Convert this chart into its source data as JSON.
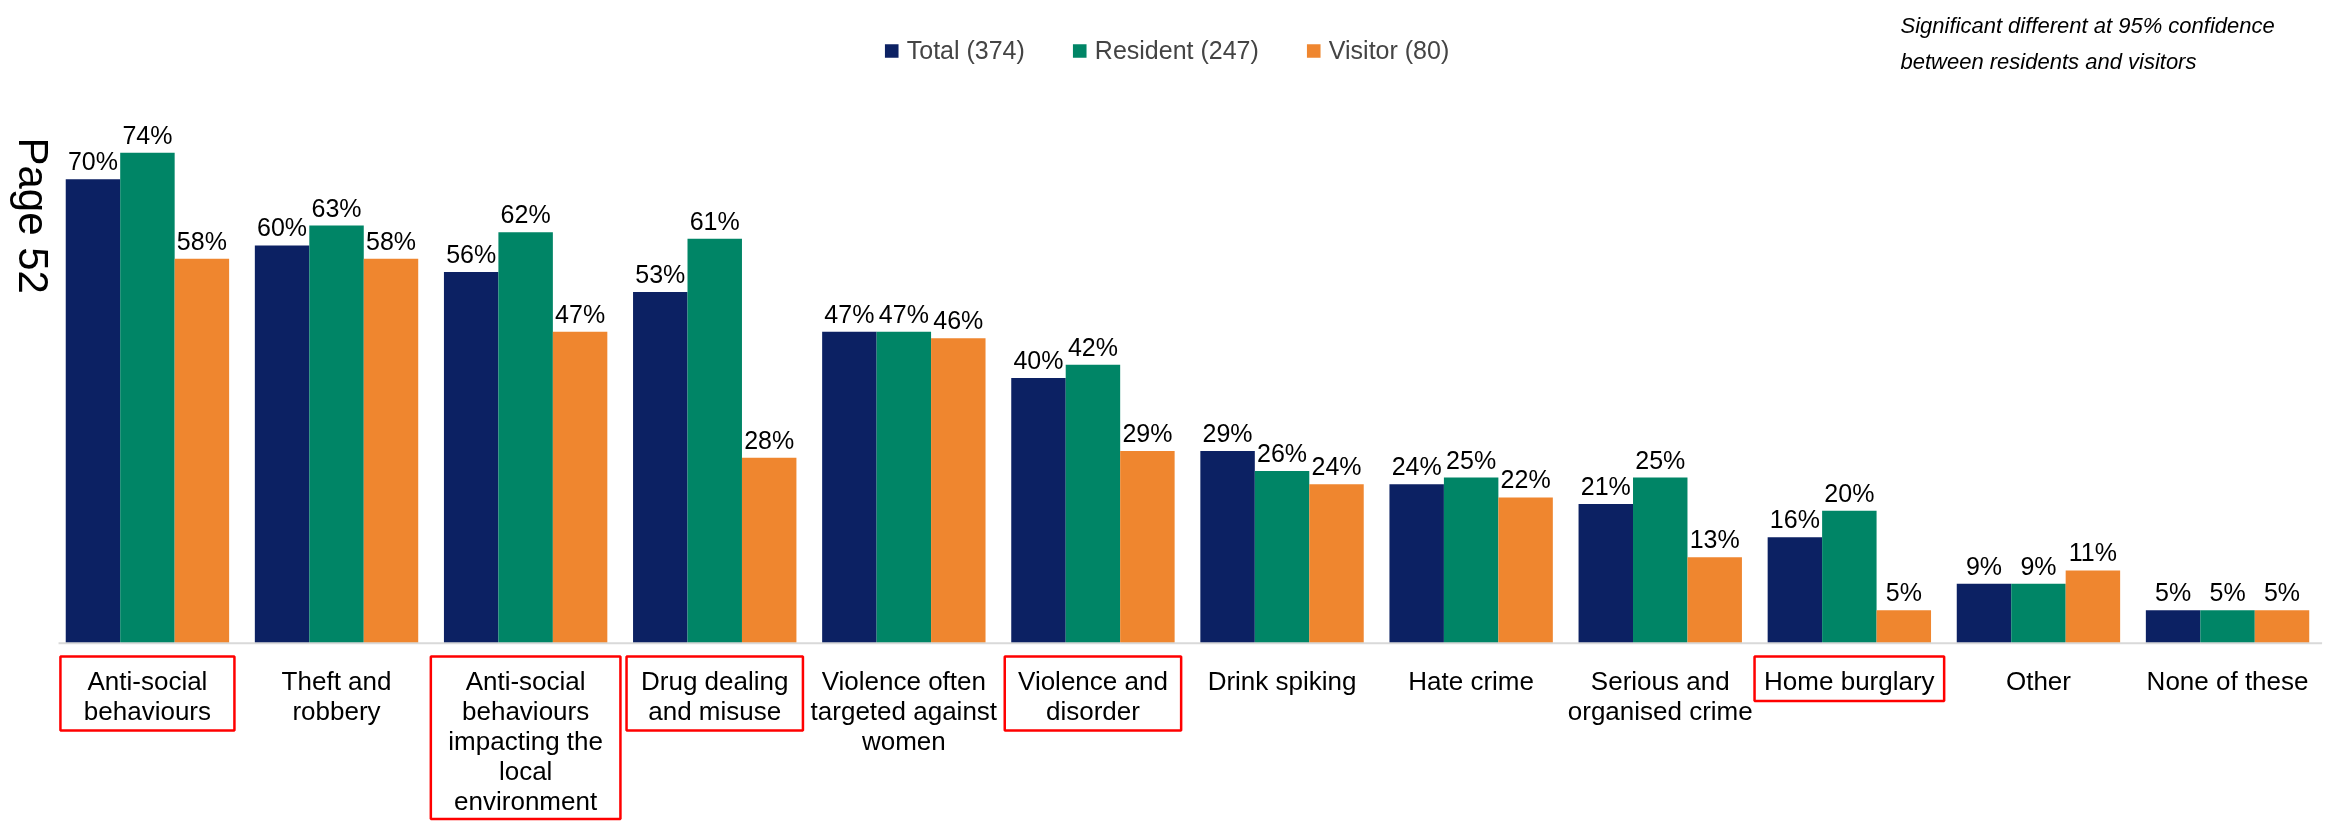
{
  "chart_data": {
    "type": "bar",
    "categories": [
      "Anti-social\nbehaviours",
      "Theft and\nrobbery",
      "Anti-social\nbehaviours\nimpacting the\nlocal\nenvironment",
      "Drug dealing\nand misuse",
      "Violence often\ntargeted against\nwomen",
      "Violence and\ndisorder",
      "Drink spiking",
      "Hate crime",
      "Serious and\norganised crime",
      "Home burglary",
      "Other",
      "None of these"
    ],
    "series": [
      {
        "name": "Total (374)",
        "color": "#0c2163",
        "values": [
          70,
          60,
          56,
          53,
          47,
          40,
          29,
          24,
          21,
          16,
          9,
          5
        ],
        "value_labels": [
          "70%",
          "60%",
          "56%",
          "53%",
          "47%",
          "40%",
          "29%",
          "24%",
          "21%",
          "16%",
          "9%",
          "5%"
        ]
      },
      {
        "name": "Resident (247)",
        "color": "#008566",
        "values": [
          74,
          63,
          62,
          61,
          47,
          42,
          26,
          25,
          25,
          20,
          9,
          5
        ],
        "value_labels": [
          "74%",
          "63%",
          "62%",
          "61%",
          "47%",
          "42%",
          "26%",
          "25%",
          "25%",
          "20%",
          "9%",
          "5%"
        ]
      },
      {
        "name": "Visitor (80)",
        "color": "#ef862f",
        "values": [
          58,
          58,
          47,
          28,
          46,
          29,
          24,
          22,
          13,
          5,
          11,
          5
        ],
        "value_labels": [
          "58%",
          "58%",
          "47%",
          "28%",
          "46%",
          "29%",
          "24%",
          "22%",
          "13%",
          "5%",
          "11%",
          "5%"
        ]
      }
    ],
    "legend": "top",
    "annotations": [
      "Page 52",
      "Significant different at 95% confidence\nbetween residents and visitors"
    ]
  }
}
